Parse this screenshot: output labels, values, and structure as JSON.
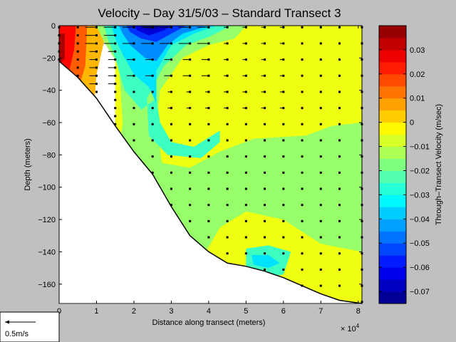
{
  "chart_data": {
    "type": "heatmap",
    "title": "Velocity – Day 31/5/03 – Standard Transect 3",
    "xlabel": "Distance along transect (meters)",
    "ylabel": "Depth (meters)",
    "x_multiplier": "× 10",
    "x_multiplier_exp": "4",
    "xlim": [
      0,
      8.1
    ],
    "ylim": [
      -172,
      0
    ],
    "x_ticks": [
      0,
      1,
      2,
      3,
      4,
      5,
      6,
      7,
      8
    ],
    "y_ticks": [
      0,
      -20,
      -40,
      -60,
      -80,
      -100,
      -120,
      -140,
      -160
    ],
    "y_tick_labels": [
      "0",
      "−20",
      "−40",
      "−60",
      "−80",
      "−100",
      "−120",
      "−140",
      "−160"
    ],
    "colorbar": {
      "label": "Through–Transect Velocity (m/sec)",
      "clim": [
        -0.075,
        0.04
      ],
      "ticks": [
        0.03,
        0.02,
        0.01,
        0,
        -0.01,
        -0.02,
        -0.03,
        -0.04,
        -0.05,
        -0.06,
        -0.07
      ],
      "tick_labels": [
        "0.03",
        "0.02",
        "0.01",
        "0",
        "−0.01",
        "−0.02",
        "−0.03",
        "−0.04",
        "−0.05",
        "−0.06",
        "−0.07"
      ]
    },
    "bathymetry": [
      [
        0,
        -22
      ],
      [
        0.5,
        -32
      ],
      [
        1,
        -45
      ],
      [
        1.5,
        -62
      ],
      [
        2,
        -78
      ],
      [
        2.5,
        -92
      ],
      [
        3,
        -112
      ],
      [
        3.5,
        -130
      ],
      [
        4,
        -140
      ],
      [
        4.5,
        -147
      ],
      [
        5,
        -149
      ],
      [
        5.5,
        -152
      ],
      [
        6,
        -156
      ],
      [
        6.5,
        -161
      ],
      [
        7,
        -166
      ],
      [
        7.5,
        -170
      ],
      [
        8.1,
        -172
      ]
    ],
    "stations_x": [
      0,
      0.5,
      1,
      1.5,
      2,
      2.5,
      3,
      3.5,
      4,
      4.5,
      5,
      5.5,
      6,
      6.5,
      7,
      7.5,
      8.1
    ],
    "contours": [
      {
        "level": -0.005,
        "polygon": [
          [
            1.5,
            0
          ],
          [
            8.1,
            0
          ],
          [
            8.1,
            -172
          ],
          [
            1.5,
            -172
          ]
        ]
      },
      {
        "level": 0.005,
        "polygon": [
          [
            0,
            0
          ],
          [
            1.3,
            0
          ],
          [
            1.0,
            -30
          ],
          [
            0.9,
            -60
          ],
          [
            0,
            -60
          ]
        ]
      },
      {
        "level": 0.015,
        "polygon": [
          [
            0,
            0
          ],
          [
            0.75,
            0
          ],
          [
            0.7,
            -25
          ],
          [
            0.5,
            -40
          ],
          [
            0,
            -40
          ]
        ]
      },
      {
        "level": 0.025,
        "polygon": [
          [
            0,
            0
          ],
          [
            0.45,
            0
          ],
          [
            0.4,
            -15
          ],
          [
            0.25,
            -30
          ],
          [
            0,
            -30
          ]
        ]
      },
      {
        "level": 0.035,
        "polygon": [
          [
            0,
            -5
          ],
          [
            0.15,
            -5
          ],
          [
            0.15,
            -20
          ],
          [
            0,
            -25
          ]
        ]
      },
      {
        "level": -0.015,
        "polygon": [
          [
            1.0,
            0
          ],
          [
            5.0,
            0
          ],
          [
            4.7,
            -8
          ],
          [
            4.0,
            -12
          ],
          [
            3.3,
            -20
          ],
          [
            2.7,
            -40
          ],
          [
            2.6,
            -60
          ],
          [
            2.75,
            -85
          ],
          [
            3.5,
            -88
          ],
          [
            4.3,
            -78
          ],
          [
            5.2,
            -70
          ],
          [
            6.6,
            -68
          ],
          [
            7.3,
            -62
          ],
          [
            8.1,
            -60
          ],
          [
            8.1,
            -140
          ],
          [
            7.0,
            -135
          ],
          [
            6.0,
            -120
          ],
          [
            5.0,
            -115
          ],
          [
            4.3,
            -125
          ],
          [
            3.8,
            -145
          ],
          [
            3.3,
            -160
          ],
          [
            2.7,
            -170
          ],
          [
            1.5,
            -172
          ],
          [
            1.5,
            -100
          ],
          [
            1.7,
            -60
          ],
          [
            1.6,
            -25
          ],
          [
            1.2,
            -10
          ]
        ]
      },
      {
        "level": -0.025,
        "polygon": [
          [
            1.2,
            0
          ],
          [
            4.6,
            0
          ],
          [
            4.0,
            -7
          ],
          [
            3.4,
            -12
          ],
          [
            2.8,
            -25
          ],
          [
            2.35,
            -45
          ],
          [
            2.4,
            -68
          ],
          [
            2.9,
            -80
          ],
          [
            3.8,
            -82
          ],
          [
            4.3,
            -72
          ],
          [
            4.3,
            -65
          ],
          [
            3.6,
            -75
          ],
          [
            3.0,
            -72
          ],
          [
            2.7,
            -60
          ],
          [
            2.6,
            -45
          ],
          [
            2.2,
            -52
          ],
          [
            1.75,
            -40
          ],
          [
            1.5,
            -20
          ],
          [
            1.3,
            -8
          ]
        ]
      },
      {
        "level": -0.025,
        "polygon": [
          [
            5.0,
            -138
          ],
          [
            5.6,
            -136
          ],
          [
            6.2,
            -140
          ],
          [
            6.0,
            -154
          ],
          [
            5.4,
            -156
          ],
          [
            5.0,
            -150
          ]
        ]
      },
      {
        "level": -0.035,
        "polygon": [
          [
            1.4,
            0
          ],
          [
            4.2,
            0
          ],
          [
            3.6,
            -5
          ],
          [
            3.0,
            -12
          ],
          [
            2.6,
            -28
          ],
          [
            2.6,
            -48
          ],
          [
            2.4,
            -38
          ],
          [
            2.0,
            -30
          ],
          [
            1.7,
            -18
          ],
          [
            1.5,
            -8
          ]
        ]
      },
      {
        "level": -0.035,
        "polygon": [
          [
            5.15,
            -142
          ],
          [
            5.6,
            -142
          ],
          [
            5.9,
            -147
          ],
          [
            5.6,
            -150
          ],
          [
            5.2,
            -148
          ]
        ]
      },
      {
        "level": -0.045,
        "polygon": [
          [
            1.6,
            0
          ],
          [
            4.0,
            0
          ],
          [
            3.3,
            -5
          ],
          [
            2.9,
            -12
          ],
          [
            2.6,
            -22
          ],
          [
            2.3,
            -20
          ],
          [
            1.9,
            -12
          ],
          [
            1.7,
            -5
          ]
        ]
      },
      {
        "level": -0.055,
        "polygon": [
          [
            1.8,
            0
          ],
          [
            3.4,
            0
          ],
          [
            3.0,
            -5
          ],
          [
            2.6,
            -10
          ],
          [
            2.2,
            -8
          ],
          [
            1.9,
            -4
          ]
        ]
      },
      {
        "level": -0.065,
        "polygon": [
          [
            2.0,
            0
          ],
          [
            3.0,
            0
          ],
          [
            2.8,
            -3
          ],
          [
            2.4,
            -6
          ],
          [
            2.1,
            -3
          ]
        ]
      },
      {
        "level": -0.073,
        "polygon": [
          [
            2.2,
            0
          ],
          [
            2.75,
            0
          ],
          [
            2.6,
            -2
          ],
          [
            2.3,
            -2
          ]
        ]
      }
    ]
  },
  "scale_legend": {
    "label": "0.5m/s"
  }
}
